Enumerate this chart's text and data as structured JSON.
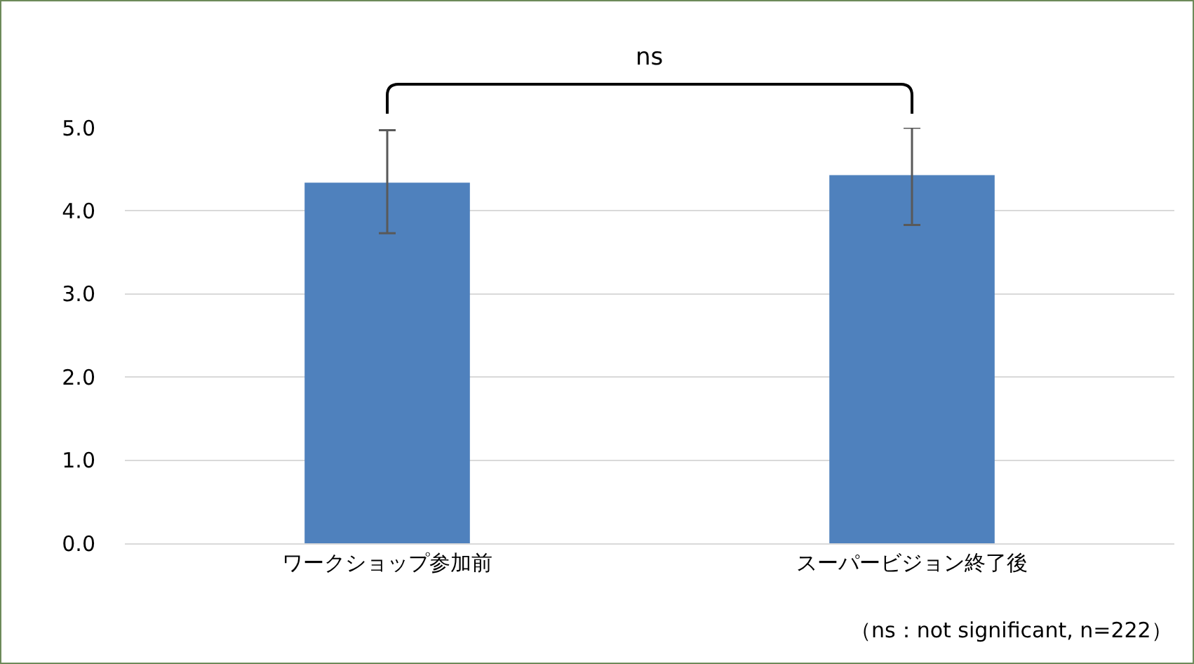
{
  "chart_data": {
    "type": "bar",
    "categories": [
      "ワークショップ参加前",
      "スーパービジョン終了後"
    ],
    "values": [
      4.34,
      4.43
    ],
    "errors": [
      [
        3.73,
        4.97
      ],
      [
        3.83,
        5.0
      ]
    ],
    "color": "#4f81bd",
    "ylim": [
      0,
      5
    ],
    "yticks": [
      {
        "value": 0,
        "label": "0.0"
      },
      {
        "value": 1,
        "label": "1.0"
      },
      {
        "value": 2,
        "label": "2.0"
      },
      {
        "value": 3,
        "label": "3.0"
      },
      {
        "value": 4,
        "label": "4.0"
      },
      {
        "value": 5,
        "label": "5.0"
      }
    ],
    "grid": "y",
    "annotations": [
      "ns",
      "（ns：not significant, n=222）"
    ]
  }
}
